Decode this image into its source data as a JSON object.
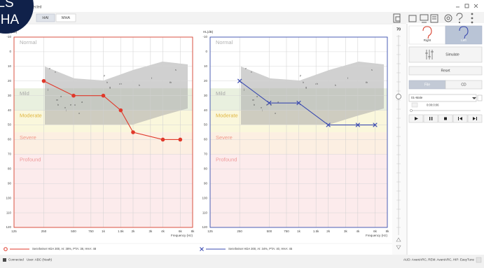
{
  "app": {
    "badge": [
      "LS",
      "HA"
    ],
    "window_title": "Selected",
    "tabs": [
      "HAI",
      "MHA"
    ],
    "status": {
      "connection": "Connected",
      "user": "User: ABC (Noah)",
      "modules": "AUD: AvantARC, REM: AvantARC, HIP: EasyTune"
    }
  },
  "panel": {
    "level": 70,
    "ears": [
      "Right",
      "Left"
    ],
    "simulate": "Simulate",
    "reset": "Reset",
    "source": [
      "File",
      "CD"
    ],
    "track": "01-Male",
    "time": "0:00:0:06"
  },
  "chart_data": [
    {
      "type": "line",
      "y_label": "HL(dB)",
      "x_label": "Frequency (Hz)",
      "xscale": "log",
      "xlim": [
        125,
        8000
      ],
      "ylim": [
        -10,
        120
      ],
      "y_inverted": true,
      "border_color": "#d9412f",
      "xticks": [
        125,
        250,
        500,
        750,
        {
          "value": 1000,
          "label": "1k"
        },
        {
          "value": 1500,
          "label": "1.5k"
        },
        {
          "value": 2000,
          "label": "2k"
        },
        {
          "value": 3000,
          "label": "3k"
        },
        {
          "value": 4000,
          "label": "4k"
        },
        {
          "value": 6000,
          "label": "6k"
        },
        {
          "value": 8000,
          "label": "8k"
        }
      ],
      "yticks": [
        -10,
        0,
        10,
        20,
        30,
        40,
        50,
        60,
        70,
        80,
        90,
        100,
        110,
        120
      ],
      "bands": [
        {
          "label": "Normal",
          "range": [
            -10,
            25
          ],
          "color": "#ffffff",
          "text_color": "#b0b0b0"
        },
        {
          "label": "Mild",
          "range": [
            25,
            40
          ],
          "color": "#e9f0df",
          "text_color": "#a8a8a8"
        },
        {
          "label": "Moderate",
          "range": [
            40,
            55
          ],
          "color": "#faf7dc",
          "text_color": "#e0b640"
        },
        {
          "label": "Severe",
          "range": [
            55,
            70
          ],
          "color": "#fcefe2",
          "text_color": "#ef9a8a"
        },
        {
          "label": "Profound",
          "range": [
            70,
            120
          ],
          "color": "#fcebec",
          "text_color": "#ef9a9a"
        }
      ],
      "phonemes": [
        "z",
        "v",
        "j",
        "m",
        "d",
        "b",
        "n",
        "e",
        "l",
        "u",
        "a",
        "o",
        "p",
        "h",
        "g",
        "ch",
        "k",
        "f",
        "s",
        "th"
      ],
      "x": [
        250,
        500,
        1000,
        1500,
        2000,
        4000,
        6000
      ],
      "series": [
        {
          "name": "Sennheiser HDA 300, AI: 38%, PTA: 38, HHA: 48",
          "color": "#e0392b",
          "marker": "circle",
          "values": [
            20,
            30,
            30,
            40,
            55,
            60,
            60
          ]
        }
      ]
    },
    {
      "type": "line",
      "y_label": "HL(dB)",
      "x_label": "Frequency (Hz)",
      "xscale": "log",
      "xlim": [
        125,
        8000
      ],
      "ylim": [
        -10,
        120
      ],
      "y_inverted": true,
      "border_color": "#3a4fae",
      "xticks": [
        125,
        250,
        500,
        750,
        {
          "value": 1000,
          "label": "1k"
        },
        {
          "value": 1500,
          "label": "1.5k"
        },
        {
          "value": 2000,
          "label": "2k"
        },
        {
          "value": 3000,
          "label": "3k"
        },
        {
          "value": 4000,
          "label": "4k"
        },
        {
          "value": 6000,
          "label": "6k"
        },
        {
          "value": 8000,
          "label": "8k"
        }
      ],
      "yticks": [
        -10,
        0,
        10,
        20,
        30,
        40,
        50,
        60,
        70,
        80,
        90,
        100,
        110,
        120
      ],
      "bands": [
        {
          "label": "Normal",
          "range": [
            -10,
            25
          ],
          "color": "#ffffff",
          "text_color": "#b0b0b0"
        },
        {
          "label": "Mild",
          "range": [
            25,
            40
          ],
          "color": "#e9f0df",
          "text_color": "#a8a8a8"
        },
        {
          "label": "Moderate",
          "range": [
            40,
            55
          ],
          "color": "#faf7dc",
          "text_color": "#e0b640"
        },
        {
          "label": "Severe",
          "range": [
            55,
            70
          ],
          "color": "#fcefe2",
          "text_color": "#ef9a8a"
        },
        {
          "label": "Profound",
          "range": [
            70,
            120
          ],
          "color": "#fcebec",
          "text_color": "#ef9a9a"
        }
      ],
      "phonemes": [
        "z",
        "v",
        "j",
        "m",
        "d",
        "b",
        "n",
        "e",
        "l",
        "u",
        "a",
        "o",
        "p",
        "h",
        "g",
        "ch",
        "k",
        "f",
        "s",
        "th"
      ],
      "x": [
        250,
        500,
        1000,
        2000,
        4000,
        6000
      ],
      "series": [
        {
          "name": "Sennheiser HDA 300, AI: 34%, PTA: 40, HHA: 45",
          "color": "#3b4bb0",
          "marker": "x",
          "values": [
            20,
            35,
            35,
            50,
            50,
            50
          ]
        }
      ]
    }
  ]
}
